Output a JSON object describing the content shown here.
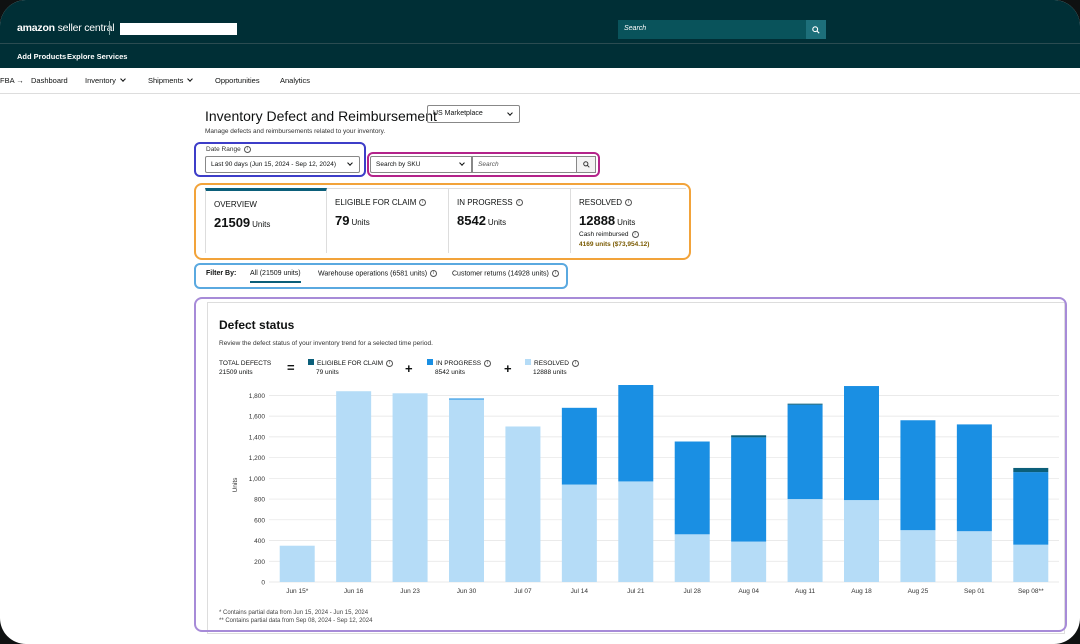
{
  "header": {
    "logo_main": "amazon",
    "logo_sub": " seller central",
    "search_placeholder": "Search"
  },
  "subnav": [
    "Add Products",
    "Explore Services"
  ],
  "nav": {
    "fba": "FBA",
    "items": [
      "Dashboard",
      "Inventory",
      "Shipments",
      "Opportunities",
      "Analytics"
    ]
  },
  "page": {
    "title": "Inventory Defect and Reimbursement",
    "subtitle": "Manage defects and reimbursements related to your inventory.",
    "marketplace": "US Marketplace",
    "date_range_label": "Date Range",
    "date_range_value": "Last 90 days (Jun 15, 2024 - Sep 12, 2024)",
    "sku_select": "Search by SKU",
    "sku_search_placeholder": "Search"
  },
  "cards": [
    {
      "title": "OVERVIEW",
      "value": "21509",
      "unit": "Units"
    },
    {
      "title": "ELIGIBLE FOR CLAIM",
      "value": "79",
      "unit": "Units"
    },
    {
      "title": "IN PROGRESS",
      "value": "8542",
      "unit": "Units"
    },
    {
      "title": "RESOLVED",
      "value": "12888",
      "unit": "Units",
      "cash_label": "Cash reimbursed",
      "cash_value": "4169 units ($73,954.12)"
    }
  ],
  "filter": {
    "label": "Filter By:",
    "options": [
      "All (21509 units)",
      "Warehouse operations (6581 units)",
      "Customer returns (14928 units)"
    ]
  },
  "defect": {
    "title": "Defect status",
    "description": "Review the defect status of your inventory trend for a selected time period.",
    "total_label": "TOTAL DEFECTS",
    "total_value": "21509 units",
    "eligible_label": "ELIGIBLE FOR CLAIM",
    "eligible_value": "79 units",
    "progress_label": "IN PROGRESS",
    "progress_value": "8542 units",
    "resolved_label": "RESOLVED",
    "resolved_value": "12888 units",
    "footnote1": "* Contains partial data from Jun 15, 2024 - Jun 15, 2024",
    "footnote2": "** Contains partial data from Sep 08, 2024 - Sep 12, 2024"
  },
  "colors": {
    "eligible": "#0b5f7a",
    "in_progress": "#1a8fe3",
    "resolved": "#b5dcf7",
    "topbar": "#002f36",
    "highlight_blue": "#3d3dc8",
    "highlight_magenta": "#b3238a",
    "highlight_orange": "#f2a33a",
    "highlight_sky": "#5aa9e0",
    "highlight_purple": "#a78bd8"
  },
  "chart_data": {
    "type": "bar",
    "stacked": true,
    "ylabel": "Units",
    "ylim": [
      0,
      1900
    ],
    "yticks": [
      0,
      200,
      400,
      600,
      800,
      1000,
      1200,
      1400,
      1600,
      1800
    ],
    "grid": true,
    "categories": [
      "Jun 15*",
      "Jun 16",
      "Jun 23",
      "Jun 30",
      "Jul 07",
      "Jul 14",
      "Jul 21",
      "Jul 28",
      "Aug 04",
      "Aug 11",
      "Aug 18",
      "Aug 25",
      "Sep 01",
      "Sep 08**"
    ],
    "series": [
      {
        "name": "RESOLVED",
        "values": [
          350,
          1840,
          1820,
          1760,
          1500,
          940,
          970,
          460,
          390,
          800,
          790,
          500,
          490,
          360
        ]
      },
      {
        "name": "IN PROGRESS",
        "values": [
          0,
          0,
          0,
          10,
          0,
          740,
          965,
          895,
          1005,
          910,
          1100,
          1060,
          1030,
          700
        ]
      },
      {
        "name": "ELIGIBLE FOR CLAIM",
        "values": [
          0,
          0,
          0,
          0,
          0,
          0,
          0,
          0,
          20,
          10,
          0,
          0,
          0,
          40
        ]
      }
    ]
  }
}
